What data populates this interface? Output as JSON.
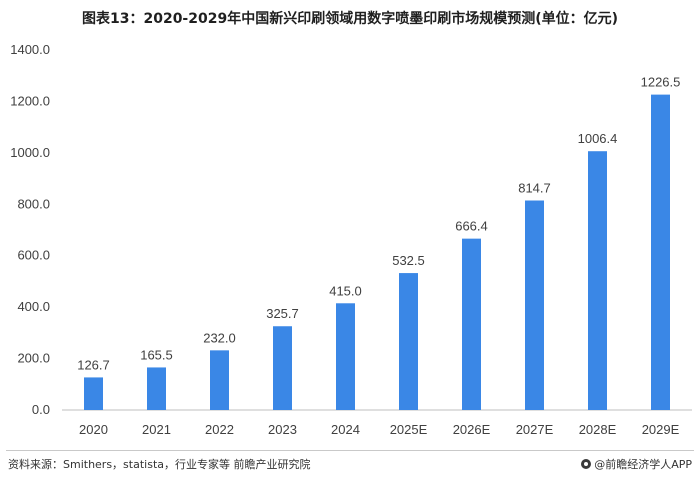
{
  "chart_data": {
    "type": "bar",
    "title": "图表13：2020-2029年中国新兴印刷领域用数字喷墨印刷市场规模预测(单位：亿元)",
    "categories": [
      "2020",
      "2021",
      "2022",
      "2023",
      "2024",
      "2025E",
      "2026E",
      "2027E",
      "2028E",
      "2029E"
    ],
    "values": [
      126.7,
      165.5,
      232.0,
      325.7,
      415.0,
      532.5,
      666.4,
      814.7,
      1006.4,
      1226.5
    ],
    "value_labels": [
      "126.7",
      "165.5",
      "232.0",
      "325.7",
      "415.0",
      "532.5",
      "666.4",
      "814.7",
      "1006.4",
      "1226.5"
    ],
    "yticks": [
      "0.0",
      "200.0",
      "400.0",
      "600.0",
      "800.0",
      "1000.0",
      "1200.0",
      "1400.0"
    ],
    "ylim": [
      0,
      1400
    ],
    "grid": false,
    "legend": "none",
    "bar_color": "#3a87e6",
    "axis_color": "#bfbfbf"
  },
  "footer": {
    "source": "资料来源：Smithers，statista，行业专家等 前瞻产业研究院",
    "brand": "@前瞻经济学人APP",
    "brand_icon": "qianzhan-logo-icon"
  }
}
